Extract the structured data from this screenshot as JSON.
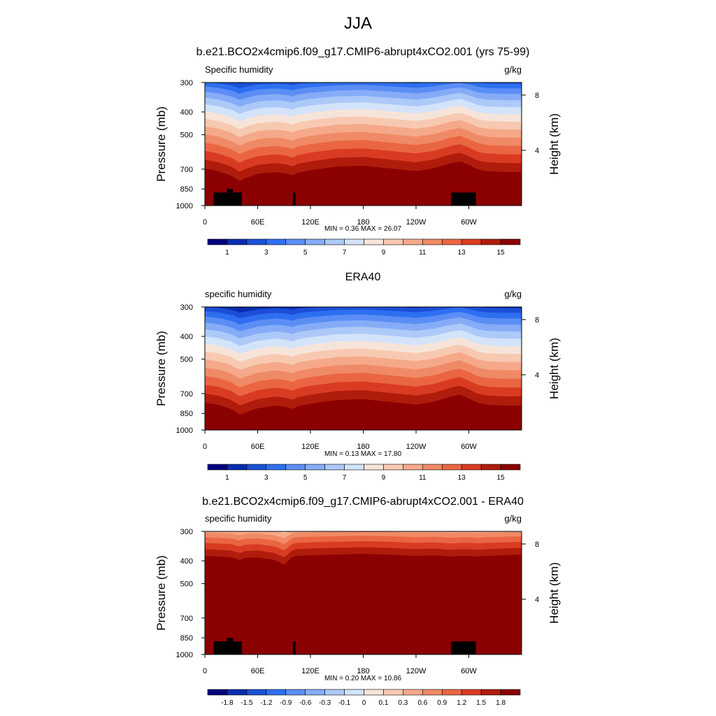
{
  "page_title": "JJA",
  "colors": {
    "seq": [
      "#00007f",
      "#0a2db0",
      "#1b4fd6",
      "#2e6ff0",
      "#5b8ef5",
      "#86acf7",
      "#adc9f8",
      "#d3e3fa",
      "#f7e4d9",
      "#f8c9b1",
      "#f5a98a",
      "#f08a66",
      "#ea6642",
      "#d93b22",
      "#b01c0c",
      "#8b0000"
    ],
    "diff": [
      "#00007f",
      "#0a2db0",
      "#1b4fd6",
      "#2e6ff0",
      "#5b8ef5",
      "#86acf7",
      "#adc9f8",
      "#d3e3fa",
      "#f7e4d9",
      "#f8c9b1",
      "#f5a98a",
      "#f08a66",
      "#ea6642",
      "#d93b22",
      "#b01c0c",
      "#8b0000"
    ],
    "land_mask": "#000000"
  },
  "chart_data": [
    {
      "type": "heatmap",
      "title": "b.e21.BCO2x4cmip6.f09_g17.CMIP6-abrupt4xCO2.001 (yrs 75-99)",
      "left_label": "Specific humidity",
      "right_label": "g/kg",
      "ylabel": "Pressure (mb)",
      "y2label": "Height (km)",
      "xticks": [
        "0",
        "60E",
        "120E",
        "180",
        "120W",
        "60W"
      ],
      "xtick_values": [
        0,
        60,
        120,
        180,
        240,
        300
      ],
      "xlim": [
        0,
        360
      ],
      "yticks": [
        "300",
        "400",
        "500",
        "700",
        "850",
        "1000"
      ],
      "ytick_values": [
        300,
        400,
        500,
        700,
        850,
        1000
      ],
      "ylim": [
        1000,
        300
      ],
      "y2ticks": [
        "8",
        "4"
      ],
      "y2tick_values": [
        8,
        4
      ],
      "stats": "MIN =   0.36  MAX =  26.07",
      "colorbar_labels": [
        "1",
        "3",
        "5",
        "7",
        "9",
        "11",
        "13",
        "15"
      ],
      "levels": 16,
      "palette": "seq",
      "profile": {
        "lon": [
          0,
          15,
          30,
          40,
          45,
          60,
          80,
          95,
          100,
          105,
          110,
          120,
          150,
          180,
          210,
          240,
          260,
          280,
          290,
          300,
          310,
          320,
          340,
          360
        ],
        "top_level": [
          3.0,
          2.7,
          2.2,
          1.6,
          1.9,
          2.4,
          2.6,
          2.4,
          2.2,
          2.5,
          2.6,
          2.8,
          3.2,
          3.3,
          3.0,
          2.7,
          3.0,
          3.6,
          3.8,
          3.4,
          2.9,
          2.7,
          2.6,
          2.6
        ]
      },
      "land": [
        [
          10,
          25,
          880
        ],
        [
          25,
          32,
          850
        ],
        [
          32,
          42,
          880
        ],
        [
          100,
          103,
          880
        ],
        [
          280,
          308,
          880
        ]
      ]
    },
    {
      "type": "heatmap",
      "title": "ERA40",
      "left_label": "specific humidity",
      "right_label": "g/kg",
      "ylabel": "Pressure (mb)",
      "y2label": "Height (km)",
      "xticks": [
        "0",
        "60E",
        "120E",
        "180",
        "120W",
        "60W"
      ],
      "xtick_values": [
        0,
        60,
        120,
        180,
        240,
        300
      ],
      "xlim": [
        0,
        360
      ],
      "yticks": [
        "300",
        "400",
        "500",
        "700",
        "850",
        "1000"
      ],
      "ytick_values": [
        300,
        400,
        500,
        700,
        850,
        1000
      ],
      "ylim": [
        1000,
        300
      ],
      "y2ticks": [
        "8",
        "4"
      ],
      "y2tick_values": [
        8,
        4
      ],
      "stats": "MIN =   0.13  MAX =  17.80",
      "colorbar_labels": [
        "1",
        "3",
        "5",
        "7",
        "9",
        "11",
        "13",
        "15"
      ],
      "levels": 16,
      "palette": "seq",
      "profile": {
        "lon": [
          0,
          15,
          30,
          40,
          45,
          60,
          80,
          95,
          100,
          105,
          110,
          120,
          150,
          180,
          210,
          240,
          260,
          280,
          290,
          300,
          310,
          320,
          340,
          360
        ],
        "top_level": [
          1.9,
          1.7,
          1.2,
          0.6,
          0.8,
          1.3,
          1.6,
          1.4,
          1.2,
          1.5,
          1.6,
          1.8,
          2.2,
          2.3,
          2.0,
          1.7,
          2.0,
          2.6,
          2.8,
          2.4,
          1.9,
          1.7,
          1.6,
          1.6
        ]
      },
      "land": []
    },
    {
      "type": "heatmap",
      "title": "b.e21.BCO2x4cmip6.f09_g17.CMIP6-abrupt4xCO2.001 - ERA40",
      "left_label": "specific humidity",
      "right_label": "g/kg",
      "ylabel": "Pressure (mb)",
      "y2label": "Height (km)",
      "xticks": [
        "0",
        "60E",
        "120E",
        "180",
        "120W",
        "60W"
      ],
      "xtick_values": [
        0,
        60,
        120,
        180,
        240,
        300
      ],
      "xlim": [
        0,
        360
      ],
      "yticks": [
        "300",
        "400",
        "500",
        "700",
        "850",
        "1000"
      ],
      "ytick_values": [
        300,
        400,
        500,
        700,
        850,
        1000
      ],
      "ylim": [
        1000,
        300
      ],
      "y2ticks": [
        "8",
        "4"
      ],
      "y2tick_values": [
        8,
        4
      ],
      "stats": "MIN =   0.20  MAX =  10.86",
      "colorbar_labels": [
        "-1.8",
        "-1.5",
        "-1.2",
        "-0.9",
        "-0.6",
        "-0.3",
        "-0.1",
        "0",
        "0.1",
        "0.3",
        "0.6",
        "0.9",
        "1.2",
        "1.5",
        "1.8"
      ],
      "levels": 16,
      "palette": "diff",
      "profile": {
        "lon": [
          0,
          15,
          30,
          40,
          45,
          60,
          80,
          90,
          95,
          100,
          105,
          120,
          150,
          180,
          210,
          240,
          260,
          280,
          290,
          300,
          310,
          320,
          340,
          360
        ],
        "top_level": [
          10.6,
          10.5,
          10.4,
          10.0,
          10.3,
          10.4,
          10.0,
          9.4,
          9.9,
          10.5,
          10.6,
          10.7,
          10.8,
          10.9,
          10.8,
          10.6,
          10.7,
          10.5,
          10.6,
          10.6,
          10.5,
          10.6,
          10.7,
          10.8
        ]
      },
      "land": [
        [
          10,
          25,
          880
        ],
        [
          25,
          32,
          850
        ],
        [
          32,
          42,
          880
        ],
        [
          100,
          103,
          880
        ],
        [
          280,
          308,
          880
        ]
      ]
    }
  ]
}
